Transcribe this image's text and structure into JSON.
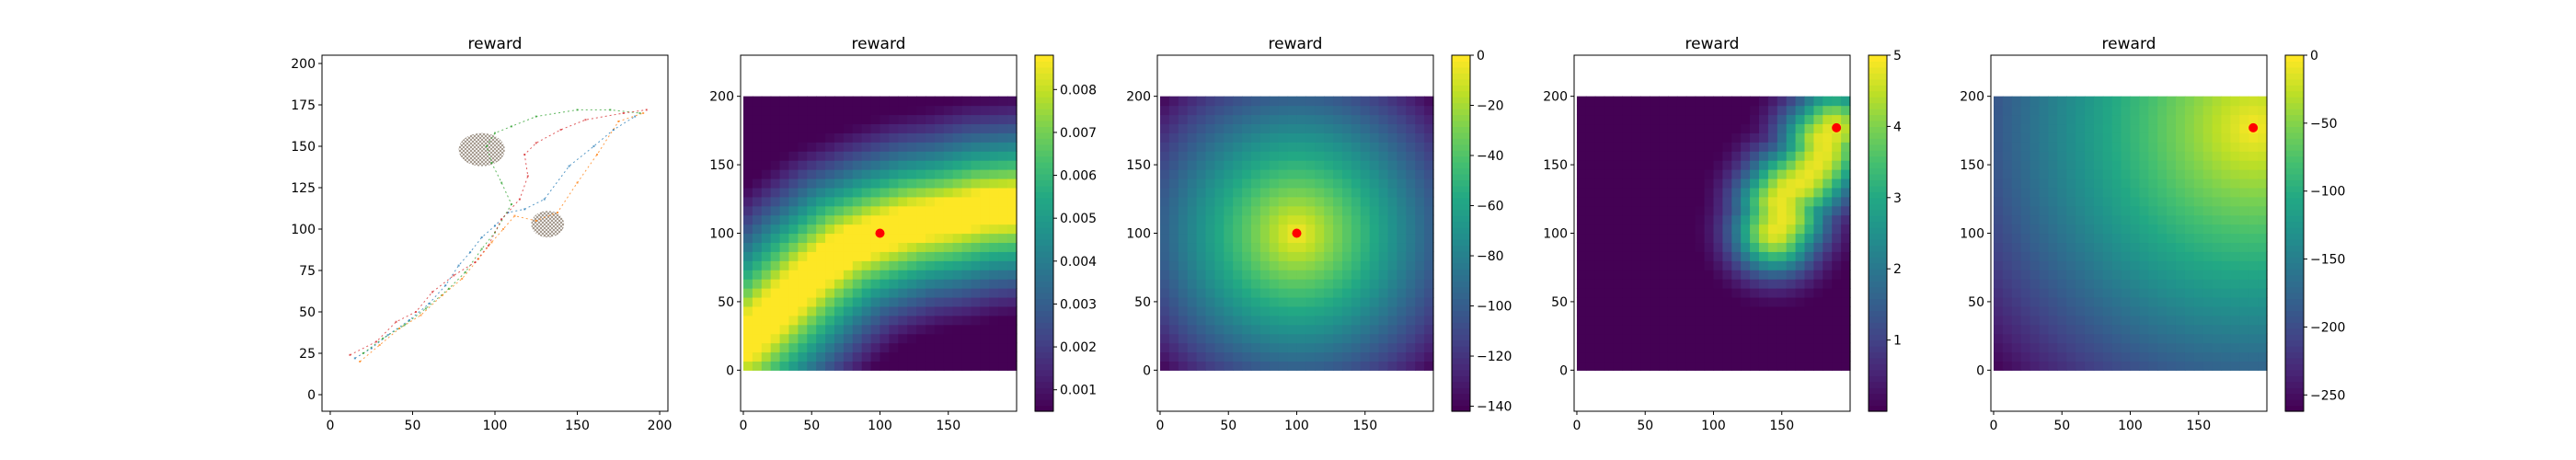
{
  "figure": {
    "background": "#ffffff",
    "marker_color": "#ff0000"
  },
  "chart_data": [
    {
      "type": "scatter",
      "title": "reward",
      "xlabel": "",
      "ylabel": "",
      "xlim": [
        -5,
        205
      ],
      "ylim": [
        -10,
        205
      ],
      "xticks": [
        0,
        50,
        100,
        150,
        200
      ],
      "yticks": [
        0,
        25,
        50,
        75,
        100,
        125,
        150,
        175,
        200
      ],
      "description_of_marks": "sparse trajectory segments (blue/orange/green/red) forming a diagonal band from about (15,20) to (190,170)",
      "paths": [
        {
          "color": "#1f77b4",
          "points": [
            [
              15,
              22
            ],
            [
              25,
              28
            ],
            [
              35,
              36
            ],
            [
              48,
              45
            ],
            [
              60,
              55
            ],
            [
              70,
              66
            ],
            [
              78,
              78
            ],
            [
              85,
              86
            ],
            [
              92,
              95
            ],
            [
              100,
              102
            ],
            [
              108,
              110
            ],
            [
              118,
              112
            ],
            [
              130,
              118
            ],
            [
              145,
              138
            ],
            [
              160,
              150
            ],
            [
              172,
              160
            ],
            [
              185,
              168
            ]
          ]
        },
        {
          "color": "#ff7f0e",
          "points": [
            [
              18,
              20
            ],
            [
              30,
              30
            ],
            [
              42,
              40
            ],
            [
              55,
              48
            ],
            [
              68,
              60
            ],
            [
              80,
              70
            ],
            [
              90,
              82
            ],
            [
              98,
              92
            ],
            [
              105,
              100
            ],
            [
              112,
              108
            ],
            [
              125,
              105
            ],
            [
              138,
              110
            ],
            [
              150,
              128
            ],
            [
              162,
              145
            ],
            [
              175,
              165
            ],
            [
              190,
              170
            ]
          ]
        },
        {
          "color": "#2ca02c",
          "points": [
            [
              20,
              25
            ],
            [
              32,
              34
            ],
            [
              45,
              42
            ],
            [
              58,
              52
            ],
            [
              72,
              64
            ],
            [
              82,
              74
            ],
            [
              92,
              88
            ],
            [
              100,
              98
            ],
            [
              110,
              115
            ],
            [
              104,
              128
            ],
            [
              98,
              140
            ],
            [
              95,
              150
            ],
            [
              100,
              158
            ],
            [
              110,
              162
            ],
            [
              125,
              168
            ],
            [
              150,
              172
            ],
            [
              170,
              172
            ],
            [
              188,
              170
            ]
          ]
        },
        {
          "color": "#d62728",
          "points": [
            [
              12,
              24
            ],
            [
              28,
              32
            ],
            [
              40,
              44
            ],
            [
              52,
              50
            ],
            [
              62,
              62
            ],
            [
              75,
              72
            ],
            [
              88,
              80
            ],
            [
              96,
              90
            ],
            [
              104,
              106
            ],
            [
              115,
              118
            ],
            [
              120,
              132
            ],
            [
              118,
              145
            ],
            [
              125,
              152
            ],
            [
              140,
              160
            ],
            [
              155,
              166
            ],
            [
              178,
              170
            ],
            [
              192,
              172
            ]
          ]
        }
      ],
      "clusters": [
        {
          "x": 92,
          "y": 148,
          "rx": 14,
          "ry": 10
        },
        {
          "x": 132,
          "y": 103,
          "rx": 10,
          "ry": 8
        }
      ]
    },
    {
      "type": "heatmap",
      "title": "reward",
      "xlim": [
        -2,
        200
      ],
      "ylim": [
        -30,
        230
      ],
      "extent": [
        0,
        200,
        0,
        200
      ],
      "xticks": [
        0,
        50,
        100,
        150
      ],
      "yticks": [
        0,
        50,
        100,
        150,
        200
      ],
      "colormap": "viridis",
      "field": "path",
      "path_points": [
        [
          0,
          20
        ],
        [
          25,
          45
        ],
        [
          50,
          70
        ],
        [
          75,
          90
        ],
        [
          100,
          100
        ],
        [
          125,
          108
        ],
        [
          150,
          112
        ],
        [
          175,
          118
        ],
        [
          200,
          120
        ]
      ],
      "vmin": 0.0005,
      "vmax": 0.0088,
      "colorbar_ticks": [
        "0.001",
        "0.002",
        "0.003",
        "0.004",
        "0.005",
        "0.006",
        "0.007",
        "0.008"
      ],
      "colorbar_tick_values": [
        0.001,
        0.002,
        0.003,
        0.004,
        0.005,
        0.006,
        0.007,
        0.008
      ],
      "marker": {
        "x": 100,
        "y": 100
      }
    },
    {
      "type": "heatmap",
      "title": "reward",
      "xlim": [
        -2,
        200
      ],
      "ylim": [
        -30,
        230
      ],
      "extent": [
        0,
        200,
        0,
        200
      ],
      "xticks": [
        0,
        50,
        100,
        150
      ],
      "yticks": [
        0,
        50,
        100,
        150,
        200
      ],
      "colormap": "viridis",
      "field": "radial",
      "center": [
        100,
        100
      ],
      "vmin": -142,
      "vmax": 0,
      "colorbar_ticks": [
        "0",
        "−20",
        "−40",
        "−60",
        "−80",
        "−100",
        "−120",
        "−140"
      ],
      "colorbar_tick_values": [
        0,
        -20,
        -40,
        -60,
        -80,
        -100,
        -120,
        -140
      ],
      "marker": {
        "x": 100,
        "y": 100
      }
    },
    {
      "type": "heatmap",
      "title": "reward",
      "xlim": [
        -2,
        200
      ],
      "ylim": [
        -30,
        230
      ],
      "extent": [
        0,
        200,
        0,
        200
      ],
      "xticks": [
        0,
        50,
        100,
        150
      ],
      "yticks": [
        0,
        50,
        100,
        150,
        200
      ],
      "colormap": "viridis",
      "field": "band",
      "path_points": [
        [
          145,
          102
        ],
        [
          152,
          112
        ],
        [
          148,
          122
        ],
        [
          155,
          132
        ],
        [
          165,
          138
        ],
        [
          172,
          146
        ],
        [
          178,
          154
        ],
        [
          182,
          162
        ],
        [
          180,
          168
        ],
        [
          188,
          176
        ]
      ],
      "vmin": 0,
      "vmax": 5,
      "colorbar_ticks": [
        "5",
        "4",
        "3",
        "2",
        "1"
      ],
      "colorbar_tick_values": [
        5,
        4,
        3,
        2,
        1
      ],
      "marker": {
        "x": 190,
        "y": 177
      }
    },
    {
      "type": "heatmap",
      "title": "reward",
      "xlim": [
        -2,
        200
      ],
      "ylim": [
        -30,
        230
      ],
      "extent": [
        0,
        200,
        0,
        200
      ],
      "xticks": [
        0,
        50,
        100,
        150
      ],
      "yticks": [
        0,
        50,
        100,
        150,
        200
      ],
      "colormap": "viridis",
      "field": "radial",
      "center": [
        190,
        177
      ],
      "vmin": -262,
      "vmax": 0,
      "colorbar_ticks": [
        "0",
        "−50",
        "−100",
        "−150",
        "−200",
        "−250"
      ],
      "colorbar_tick_values": [
        0,
        -50,
        -100,
        -150,
        -200,
        -250
      ],
      "marker": {
        "x": 190,
        "y": 177
      }
    }
  ]
}
